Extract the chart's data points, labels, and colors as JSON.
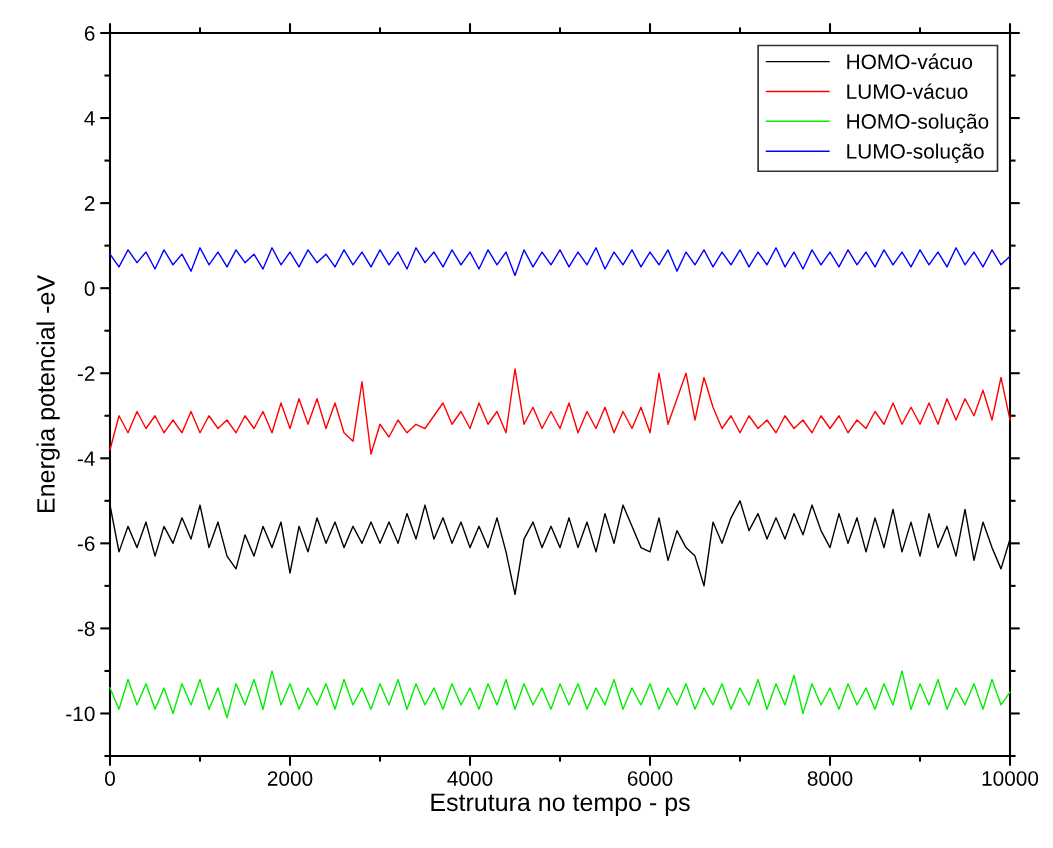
{
  "chart_data": {
    "type": "line",
    "xlabel": "Estrutura no tempo - ps",
    "ylabel": "Energia potencial -eV",
    "x": [
      0,
      100,
      200,
      300,
      400,
      500,
      600,
      700,
      800,
      900,
      1000,
      1100,
      1200,
      1300,
      1400,
      1500,
      1600,
      1700,
      1800,
      1900,
      2000,
      2100,
      2200,
      2300,
      2400,
      2500,
      2600,
      2700,
      2800,
      2900,
      3000,
      3100,
      3200,
      3300,
      3400,
      3500,
      3600,
      3700,
      3800,
      3900,
      4000,
      4100,
      4200,
      4300,
      4400,
      4500,
      4600,
      4700,
      4800,
      4900,
      5000,
      5100,
      5200,
      5300,
      5400,
      5500,
      5600,
      5700,
      5800,
      5900,
      6000,
      6100,
      6200,
      6300,
      6400,
      6500,
      6600,
      6700,
      6800,
      6900,
      7000,
      7100,
      7200,
      7300,
      7400,
      7500,
      7600,
      7700,
      7800,
      7900,
      8000,
      8100,
      8200,
      8300,
      8400,
      8500,
      8600,
      8700,
      8800,
      8900,
      9000,
      9100,
      9200,
      9300,
      9400,
      9500,
      9600,
      9700,
      9800,
      9900,
      10000
    ],
    "series": [
      {
        "name": "HOMO-vácuo",
        "color": "#000000",
        "values": [
          -5.1,
          -6.2,
          -5.6,
          -6.1,
          -5.5,
          -6.3,
          -5.6,
          -6.0,
          -5.4,
          -5.9,
          -5.1,
          -6.1,
          -5.5,
          -6.3,
          -6.6,
          -5.8,
          -6.3,
          -5.6,
          -6.1,
          -5.5,
          -6.7,
          -5.6,
          -6.2,
          -5.4,
          -6.0,
          -5.5,
          -6.1,
          -5.6,
          -6.0,
          -5.5,
          -6.0,
          -5.5,
          -6.0,
          -5.3,
          -5.9,
          -5.1,
          -5.9,
          -5.4,
          -6.0,
          -5.5,
          -6.1,
          -5.6,
          -6.1,
          -5.4,
          -6.2,
          -7.2,
          -5.9,
          -5.5,
          -6.1,
          -5.6,
          -6.1,
          -5.4,
          -6.1,
          -5.5,
          -6.2,
          -5.3,
          -6.0,
          -5.1,
          -5.6,
          -6.1,
          -6.2,
          -5.4,
          -6.4,
          -5.7,
          -6.1,
          -6.3,
          -7.0,
          -5.5,
          -6.0,
          -5.4,
          -5.0,
          -5.7,
          -5.3,
          -5.9,
          -5.4,
          -5.9,
          -5.3,
          -5.8,
          -5.1,
          -5.7,
          -6.1,
          -5.3,
          -6.0,
          -5.4,
          -6.2,
          -5.4,
          -6.1,
          -5.2,
          -6.2,
          -5.5,
          -6.3,
          -5.3,
          -6.1,
          -5.6,
          -6.3,
          -5.2,
          -6.4,
          -5.5,
          -6.1,
          -6.6,
          -5.9
        ]
      },
      {
        "name": "LUMO-vácuo",
        "color": "#ff0000",
        "values": [
          -3.8,
          -3.0,
          -3.4,
          -2.9,
          -3.3,
          -3.0,
          -3.4,
          -3.1,
          -3.4,
          -2.9,
          -3.4,
          -3.0,
          -3.3,
          -3.1,
          -3.4,
          -3.0,
          -3.3,
          -2.9,
          -3.4,
          -2.7,
          -3.3,
          -2.6,
          -3.2,
          -2.6,
          -3.3,
          -2.7,
          -3.4,
          -3.6,
          -2.2,
          -3.9,
          -3.2,
          -3.5,
          -3.1,
          -3.4,
          -3.2,
          -3.3,
          -3.0,
          -2.7,
          -3.2,
          -2.9,
          -3.3,
          -2.7,
          -3.2,
          -2.9,
          -3.4,
          -1.9,
          -3.2,
          -2.8,
          -3.3,
          -2.9,
          -3.3,
          -2.7,
          -3.4,
          -2.9,
          -3.3,
          -2.8,
          -3.4,
          -2.9,
          -3.3,
          -2.8,
          -3.4,
          -2.0,
          -3.2,
          -2.6,
          -2.0,
          -3.1,
          -2.1,
          -2.8,
          -3.3,
          -3.0,
          -3.4,
          -3.0,
          -3.3,
          -3.1,
          -3.4,
          -3.0,
          -3.3,
          -3.1,
          -3.4,
          -3.0,
          -3.3,
          -3.0,
          -3.4,
          -3.1,
          -3.3,
          -2.9,
          -3.2,
          -2.7,
          -3.2,
          -2.8,
          -3.2,
          -2.7,
          -3.2,
          -2.6,
          -3.1,
          -2.6,
          -3.0,
          -2.4,
          -3.1,
          -2.1,
          -3.1
        ]
      },
      {
        "name": "HOMO-solução",
        "color": "#00ee00",
        "values": [
          -9.4,
          -9.9,
          -9.2,
          -9.8,
          -9.3,
          -9.9,
          -9.4,
          -10.0,
          -9.3,
          -9.8,
          -9.2,
          -9.9,
          -9.4,
          -10.1,
          -9.3,
          -9.8,
          -9.2,
          -9.9,
          -9.0,
          -9.8,
          -9.3,
          -9.9,
          -9.4,
          -9.8,
          -9.3,
          -9.9,
          -9.2,
          -9.8,
          -9.4,
          -9.9,
          -9.3,
          -9.8,
          -9.2,
          -9.9,
          -9.3,
          -9.8,
          -9.4,
          -9.9,
          -9.3,
          -9.8,
          -9.4,
          -9.9,
          -9.3,
          -9.8,
          -9.2,
          -9.9,
          -9.3,
          -9.8,
          -9.4,
          -9.9,
          -9.3,
          -9.8,
          -9.3,
          -9.9,
          -9.4,
          -9.8,
          -9.2,
          -9.9,
          -9.4,
          -9.8,
          -9.3,
          -9.9,
          -9.4,
          -9.8,
          -9.3,
          -9.9,
          -9.4,
          -9.8,
          -9.3,
          -9.9,
          -9.4,
          -9.8,
          -9.2,
          -9.9,
          -9.3,
          -9.8,
          -9.1,
          -10.0,
          -9.3,
          -9.8,
          -9.4,
          -9.9,
          -9.3,
          -9.8,
          -9.4,
          -9.9,
          -9.3,
          -9.8,
          -9.0,
          -9.9,
          -9.3,
          -9.8,
          -9.2,
          -9.9,
          -9.4,
          -9.8,
          -9.3,
          -9.9,
          -9.2,
          -9.8,
          -9.5
        ]
      },
      {
        "name": "LUMO-solução",
        "color": "#0000ff",
        "values": [
          0.8,
          0.5,
          0.9,
          0.6,
          0.85,
          0.45,
          0.9,
          0.55,
          0.8,
          0.4,
          0.95,
          0.55,
          0.85,
          0.5,
          0.9,
          0.6,
          0.8,
          0.45,
          0.95,
          0.55,
          0.85,
          0.5,
          0.9,
          0.6,
          0.8,
          0.5,
          0.9,
          0.55,
          0.85,
          0.5,
          0.9,
          0.55,
          0.85,
          0.45,
          0.95,
          0.6,
          0.85,
          0.5,
          0.9,
          0.55,
          0.85,
          0.45,
          0.9,
          0.55,
          0.85,
          0.3,
          0.9,
          0.5,
          0.85,
          0.55,
          0.9,
          0.5,
          0.85,
          0.55,
          0.95,
          0.45,
          0.85,
          0.55,
          0.9,
          0.5,
          0.85,
          0.55,
          0.9,
          0.4,
          0.85,
          0.55,
          0.9,
          0.5,
          0.85,
          0.55,
          0.9,
          0.5,
          0.85,
          0.55,
          0.95,
          0.5,
          0.85,
          0.45,
          0.9,
          0.55,
          0.85,
          0.5,
          0.9,
          0.55,
          0.85,
          0.5,
          0.9,
          0.55,
          0.85,
          0.5,
          0.9,
          0.55,
          0.85,
          0.5,
          0.95,
          0.55,
          0.85,
          0.5,
          0.9,
          0.55,
          0.75
        ]
      }
    ],
    "xlim": [
      0,
      10000
    ],
    "xticks": [
      0,
      2000,
      4000,
      6000,
      8000,
      10000
    ],
    "ylim": [
      -11,
      6
    ],
    "yticks": [
      -10,
      -8,
      -6,
      -4,
      -2,
      0,
      2,
      4,
      6
    ],
    "legend": "top right",
    "grid": false,
    "marker": "none",
    "line_style": "solid"
  }
}
